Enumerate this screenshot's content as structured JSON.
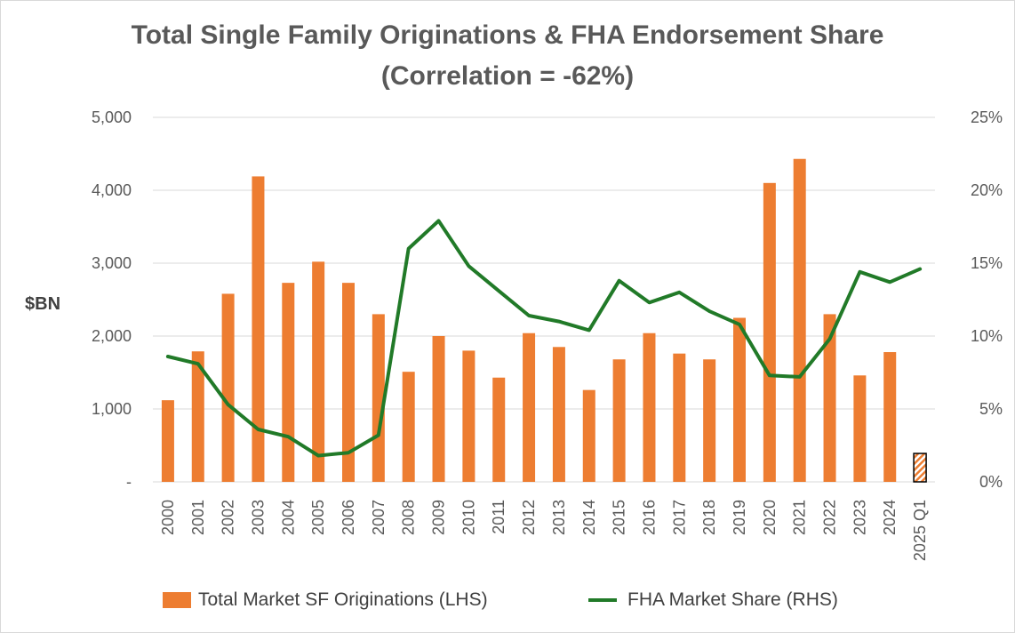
{
  "colors": {
    "bar": "#ED7D31",
    "line": "#217A28",
    "grid": "#d9d9d9",
    "text": "#595959"
  },
  "chart_data": {
    "type": "bar+line",
    "title": "Total Single Family Originations & FHA Endorsement Share",
    "subtitle": "(Correlation = -62%)",
    "ylabel": "$BN",
    "ylim": [
      0,
      5000
    ],
    "y2lim": [
      0,
      0.25
    ],
    "yticks": [
      "-",
      "1,000",
      "2,000",
      "3,000",
      "4,000",
      "5,000"
    ],
    "y2ticks": [
      "0%",
      "5%",
      "10%",
      "15%",
      "20%",
      "25%"
    ],
    "categories": [
      "2000",
      "2001",
      "2002",
      "2003",
      "2004",
      "2005",
      "2006",
      "2007",
      "2008",
      "2009",
      "2010",
      "2011",
      "2012",
      "2013",
      "2014",
      "2015",
      "2016",
      "2017",
      "2018",
      "2019",
      "2020",
      "2021",
      "2022",
      "2023",
      "2024",
      "2025 Q1"
    ],
    "series": [
      {
        "name": "Total Market SF Originations (LHS)",
        "axis": "left",
        "type": "bar",
        "values": [
          1120,
          1790,
          2580,
          4190,
          2730,
          3020,
          2730,
          2300,
          1510,
          2000,
          1800,
          1430,
          2040,
          1850,
          1260,
          1680,
          2040,
          1760,
          1680,
          2250,
          4100,
          4430,
          2300,
          1460,
          1780,
          390
        ],
        "hatched_last": true
      },
      {
        "name": "FHA Market Share (RHS)",
        "axis": "right",
        "type": "line",
        "values": [
          0.086,
          0.081,
          0.053,
          0.036,
          0.031,
          0.018,
          0.02,
          0.032,
          0.16,
          0.179,
          0.148,
          0.131,
          0.114,
          0.11,
          0.104,
          0.138,
          0.123,
          0.13,
          0.117,
          0.108,
          0.073,
          0.072,
          0.098,
          0.144,
          0.137,
          0.146
        ]
      }
    ]
  }
}
